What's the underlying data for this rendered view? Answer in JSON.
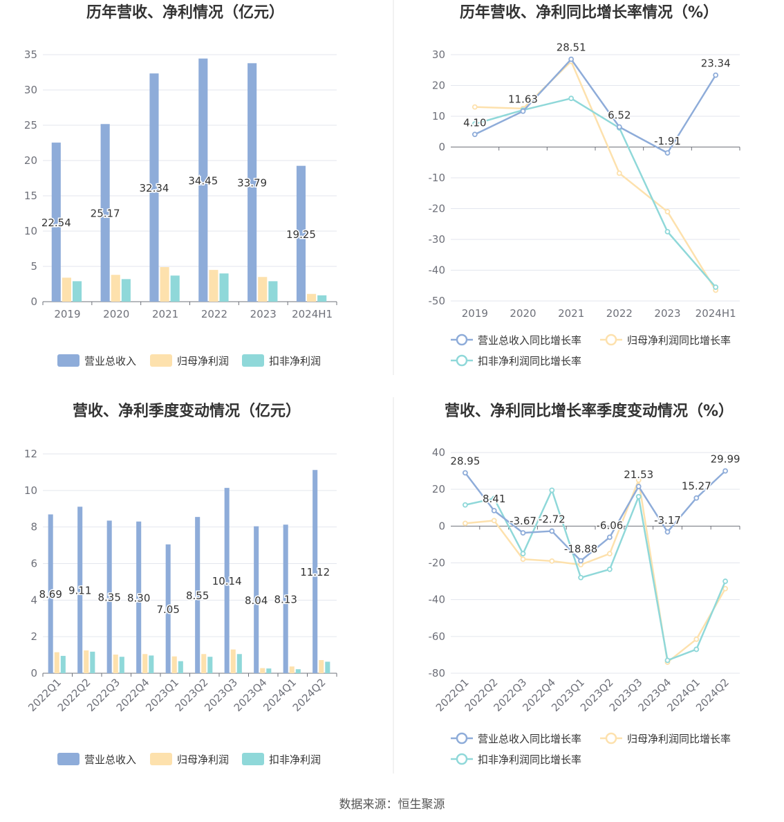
{
  "source_note": "数据来源：恒生聚源",
  "colors": {
    "revenue": "#8eacd9",
    "net_profit": "#fde1ad",
    "deducted_profit": "#8fd8d9"
  },
  "chart_data": [
    {
      "type": "bar",
      "title": "历年营收、净利情况（亿元）",
      "categories": [
        "2019",
        "2020",
        "2021",
        "2022",
        "2023",
        "2024H1"
      ],
      "ylim": [
        0,
        35
      ],
      "yticks": [
        0,
        5,
        10,
        15,
        20,
        25,
        30,
        35
      ],
      "grid": true,
      "legend_position": "bottom",
      "label_series": 0,
      "series": [
        {
          "name": "营业总收入",
          "values": [
            22.54,
            25.17,
            32.34,
            34.45,
            33.79,
            19.25
          ]
        },
        {
          "name": "归母净利润",
          "values": [
            3.4,
            3.8,
            4.9,
            4.5,
            3.5,
            1.1
          ]
        },
        {
          "name": "扣非净利润",
          "values": [
            2.9,
            3.2,
            3.7,
            4.0,
            2.9,
            0.9
          ]
        }
      ]
    },
    {
      "type": "line",
      "title": "历年营收、净利同比增长率情况（%）",
      "categories": [
        "2019",
        "2020",
        "2021",
        "2022",
        "2023",
        "2024H1"
      ],
      "ylim": [
        -50,
        30
      ],
      "yticks": [
        -50,
        -40,
        -30,
        -20,
        -10,
        0,
        10,
        20,
        30
      ],
      "grid": true,
      "legend_position": "bottom",
      "label_series": 0,
      "series": [
        {
          "name": "营业总收入同比增长率",
          "values": [
            4.1,
            11.63,
            28.51,
            6.52,
            -1.91,
            23.34
          ]
        },
        {
          "name": "归母净利润同比增长率",
          "values": [
            13.0,
            12.5,
            27.8,
            -8.5,
            -21.0,
            -46.5
          ]
        },
        {
          "name": "扣非净利润同比增长率",
          "values": [
            7.5,
            12.0,
            15.8,
            6.2,
            -27.5,
            -45.5
          ]
        }
      ]
    },
    {
      "type": "bar",
      "title": "营收、净利季度变动情况（亿元）",
      "categories": [
        "2022Q1",
        "2022Q2",
        "2022Q3",
        "2022Q4",
        "2023Q1",
        "2023Q2",
        "2023Q3",
        "2023Q4",
        "2024Q1",
        "2024Q2"
      ],
      "ylim": [
        0,
        12
      ],
      "yticks": [
        0,
        2,
        4,
        6,
        8,
        10,
        12
      ],
      "grid": true,
      "legend_position": "bottom",
      "label_series": 0,
      "series": [
        {
          "name": "营业总收入",
          "values": [
            8.69,
            9.11,
            8.35,
            8.3,
            7.05,
            8.55,
            10.14,
            8.04,
            8.13,
            11.12
          ]
        },
        {
          "name": "归母净利润",
          "values": [
            1.15,
            1.25,
            1.02,
            1.05,
            0.92,
            1.05,
            1.3,
            0.28,
            0.37,
            0.72
          ]
        },
        {
          "name": "扣非净利润",
          "values": [
            0.95,
            1.18,
            0.9,
            0.97,
            0.66,
            0.9,
            1.05,
            0.26,
            0.22,
            0.63
          ]
        }
      ]
    },
    {
      "type": "line",
      "title": "营收、净利同比增长率季度变动情况（%）",
      "categories": [
        "2022Q1",
        "2022Q2",
        "2022Q3",
        "2022Q4",
        "2023Q1",
        "2023Q2",
        "2023Q3",
        "2023Q4",
        "2024Q1",
        "2024Q2"
      ],
      "ylim": [
        -80,
        40
      ],
      "yticks": [
        -80,
        -60,
        -40,
        -20,
        0,
        20,
        40
      ],
      "grid": true,
      "legend_position": "bottom",
      "label_series": 0,
      "series": [
        {
          "name": "营业总收入同比增长率",
          "values": [
            28.95,
            8.41,
            -3.67,
            -2.72,
            -18.88,
            -6.06,
            21.53,
            -3.17,
            15.27,
            29.99
          ]
        },
        {
          "name": "归母净利润同比增长率",
          "values": [
            1.5,
            3.0,
            -18.0,
            -19.0,
            -21.0,
            -15.0,
            25.0,
            -74.0,
            -61.5,
            -34.0
          ]
        },
        {
          "name": "扣非净利润同比增长率",
          "values": [
            11.5,
            15.0,
            -15.0,
            19.5,
            -28.0,
            -23.5,
            16.0,
            -73.0,
            -67.0,
            -30.0
          ]
        }
      ]
    }
  ]
}
